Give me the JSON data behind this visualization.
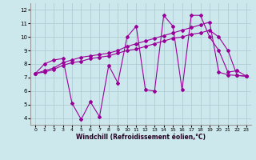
{
  "xlabel": "Windchill (Refroidissement éolien,°C)",
  "xlim": [
    -0.5,
    23.5
  ],
  "ylim": [
    3.5,
    12.5
  ],
  "xticks": [
    0,
    1,
    2,
    3,
    4,
    5,
    6,
    7,
    8,
    9,
    10,
    11,
    12,
    13,
    14,
    15,
    16,
    17,
    18,
    19,
    20,
    21,
    22,
    23
  ],
  "yticks": [
    4,
    5,
    6,
    7,
    8,
    9,
    10,
    11,
    12
  ],
  "bg_color": "#cde8ec",
  "grid_color": "#aac8d0",
  "line_color": "#990099",
  "line1_x": [
    0,
    1,
    2,
    3,
    4,
    5,
    6,
    7,
    8,
    9,
    10,
    11,
    12,
    13,
    14,
    15,
    16,
    17,
    18,
    19,
    20,
    21,
    22,
    23
  ],
  "line1_y": [
    7.3,
    8.0,
    8.3,
    8.4,
    5.1,
    3.9,
    5.2,
    4.1,
    7.9,
    6.6,
    10.0,
    10.8,
    6.1,
    6.0,
    11.6,
    10.8,
    6.1,
    11.6,
    11.6,
    10.0,
    9.0,
    7.4,
    7.5,
    7.1
  ],
  "line2_x": [
    0,
    1,
    2,
    3,
    4,
    5,
    6,
    7,
    8,
    9,
    10,
    11,
    12,
    13,
    14,
    15,
    16,
    17,
    18,
    19,
    20,
    21,
    22,
    23
  ],
  "line2_y": [
    7.3,
    7.5,
    7.7,
    8.1,
    8.3,
    8.5,
    8.6,
    8.7,
    8.8,
    9.0,
    9.3,
    9.5,
    9.7,
    9.9,
    10.1,
    10.3,
    10.5,
    10.7,
    10.9,
    11.1,
    7.4,
    7.2,
    7.15,
    7.1
  ],
  "line3_x": [
    0,
    1,
    2,
    3,
    4,
    5,
    6,
    7,
    8,
    9,
    10,
    11,
    12,
    13,
    14,
    15,
    16,
    17,
    18,
    19,
    20,
    21,
    22,
    23
  ],
  "line3_y": [
    7.3,
    7.4,
    7.6,
    7.9,
    8.1,
    8.2,
    8.4,
    8.5,
    8.6,
    8.8,
    9.0,
    9.1,
    9.3,
    9.5,
    9.7,
    9.9,
    10.0,
    10.2,
    10.3,
    10.5,
    10.0,
    9.0,
    7.15,
    7.1
  ]
}
